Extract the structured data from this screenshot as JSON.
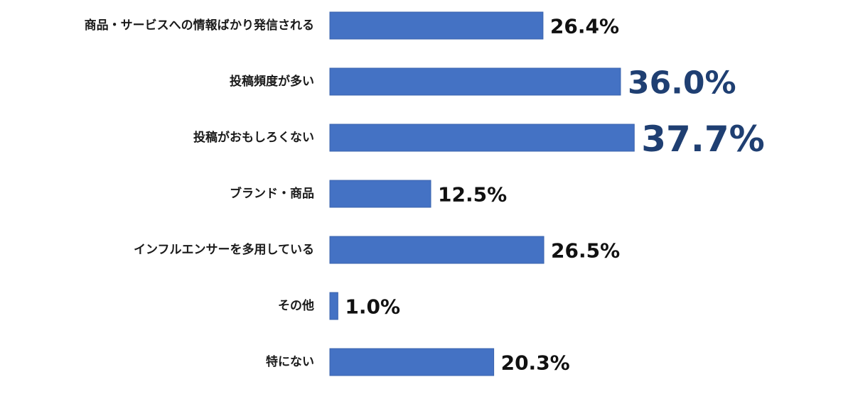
{
  "chart_data": {
    "type": "bar",
    "orientation": "horizontal",
    "categories": [
      "商品・サービスへの情報ばかり発信される",
      "投稿頻度が多い",
      "投稿がおもしろくない",
      "ブランド・商品",
      "インフルエンサーを多用している",
      "その他",
      "特にない"
    ],
    "values": [
      26.4,
      36.0,
      37.7,
      12.5,
      26.5,
      1.0,
      20.3
    ],
    "value_labels": [
      "26.4%",
      "36.0%",
      "37.7%",
      "12.5%",
      "26.5%",
      "1.0%",
      "20.3%"
    ],
    "highlighted": [
      false,
      true,
      true,
      false,
      false,
      false,
      false
    ],
    "xlim": [
      0,
      40
    ],
    "unit": "%",
    "grid": false,
    "legend": "none",
    "colors": {
      "bar": "#4472c4",
      "label": "#111111",
      "highlight_label": "#1f3f72"
    }
  }
}
